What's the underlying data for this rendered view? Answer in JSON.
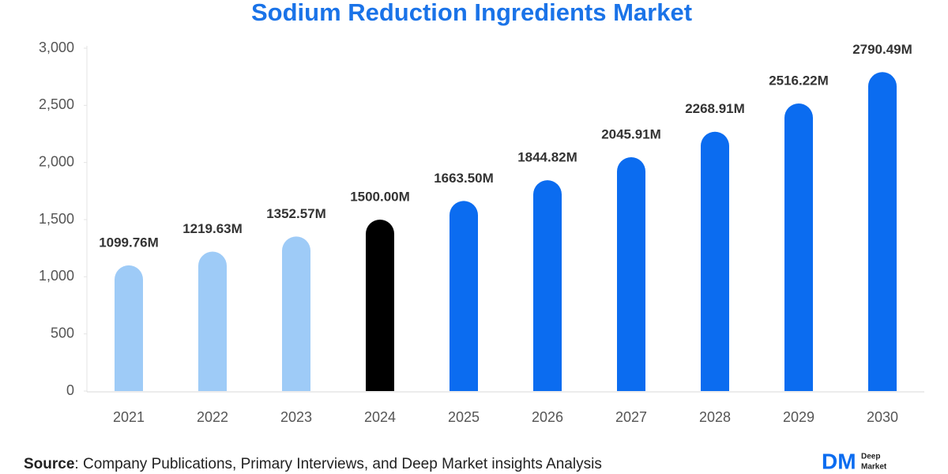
{
  "chart_data": {
    "type": "bar",
    "title": "Sodium Reduction Ingredients Market",
    "categories": [
      "2021",
      "2022",
      "2023",
      "2024",
      "2025",
      "2026",
      "2027",
      "2028",
      "2029",
      "2030"
    ],
    "values": [
      1099.76,
      1219.63,
      1352.57,
      1500.0,
      1663.5,
      1844.82,
      2045.91,
      2268.91,
      2516.22,
      2790.49
    ],
    "value_labels": [
      "1099.76M",
      "1219.63M",
      "1352.57M",
      "1500.00M",
      "1663.50M",
      "1844.82M",
      "2045.91M",
      "2268.91M",
      "2516.22M",
      "2790.49M"
    ],
    "colors": [
      "#9ecbf7",
      "#9ecbf7",
      "#9ecbf7",
      "#000000",
      "#0b6cf0",
      "#0b6cf0",
      "#0b6cf0",
      "#0b6cf0",
      "#0b6cf0",
      "#0b6cf0"
    ],
    "ylim": [
      0,
      3000
    ],
    "yticks": [
      0,
      500,
      {
        "value": 1000,
        "label": "1,000"
      },
      {
        "value": 1500,
        "label": "1,500"
      },
      {
        "value": 2000,
        "label": "2,000"
      },
      {
        "value": 2500,
        "label": "2,500"
      },
      {
        "value": 3000,
        "label": "3,000"
      }
    ],
    "grid": false
  },
  "footer": {
    "source_label": "Source",
    "source_text": ": Company Publications, Primary Interviews, and Deep Market insights Analysis"
  },
  "logo": {
    "mark": "DM",
    "line1": "Deep",
    "line2": "Market"
  }
}
